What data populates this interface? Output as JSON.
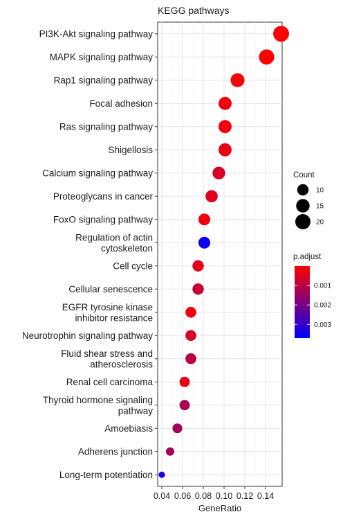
{
  "chart_data": {
    "type": "scatter",
    "title": "KEGG pathways",
    "xlabel": "GeneRatio",
    "ylabel": "",
    "xlim": [
      0.036,
      0.156
    ],
    "xticks": [
      0.04,
      0.06,
      0.08,
      0.1,
      0.12,
      0.14
    ],
    "xtick_labels": [
      "0.04",
      "0.06",
      "0.08",
      "0.10",
      "0.12",
      "0.14"
    ],
    "grid": true,
    "legend_placement": "right",
    "size_legend": {
      "title": "Count",
      "values": [
        10,
        15,
        20
      ],
      "labels": [
        "10",
        "15",
        "20"
      ]
    },
    "color_legend": {
      "title": "p.adjust",
      "low_color": "#FF0000",
      "high_color": "#0000FF",
      "min": 0.0,
      "max": 0.0037,
      "ticks": [
        0.001,
        0.002,
        0.003
      ],
      "tick_labels": [
        "0.001",
        "0.002",
        "0.003"
      ]
    },
    "points": [
      {
        "label": [
          "PI3K-Akt signaling pathway"
        ],
        "x": 0.155,
        "count": 22,
        "p_adjust": 2e-05
      },
      {
        "label": [
          "MAPK signaling pathway"
        ],
        "x": 0.141,
        "count": 20,
        "p_adjust": 5e-05
      },
      {
        "label": [
          "Rap1 signaling pathway"
        ],
        "x": 0.113,
        "count": 16,
        "p_adjust": 0.0001
      },
      {
        "label": [
          "Focal adhesion"
        ],
        "x": 0.101,
        "count": 14,
        "p_adjust": 0.0002
      },
      {
        "label": [
          "Ras signaling pathway"
        ],
        "x": 0.101,
        "count": 14,
        "p_adjust": 0.0002
      },
      {
        "label": [
          "Shigellosis"
        ],
        "x": 0.101,
        "count": 14,
        "p_adjust": 0.0003
      },
      {
        "label": [
          "Calcium signaling pathway"
        ],
        "x": 0.095,
        "count": 13,
        "p_adjust": 0.0006
      },
      {
        "label": [
          "Proteoglycans in cancer"
        ],
        "x": 0.088,
        "count": 12,
        "p_adjust": 0.0004
      },
      {
        "label": [
          "FoxO signaling pathway"
        ],
        "x": 0.081,
        "count": 11,
        "p_adjust": 0.0002
      },
      {
        "label": [
          "Regulation of actin",
          "cytoskeleton"
        ],
        "x": 0.081,
        "count": 11,
        "p_adjust": 0.0035
      },
      {
        "label": [
          "Cell cycle"
        ],
        "x": 0.075,
        "count": 10,
        "p_adjust": 0.0004
      },
      {
        "label": [
          "Cellular senescence"
        ],
        "x": 0.075,
        "count": 10,
        "p_adjust": 0.0008
      },
      {
        "label": [
          "EGFR tyrosine kinase",
          "inhibitor resistance"
        ],
        "x": 0.068,
        "count": 9,
        "p_adjust": 0.0002
      },
      {
        "label": [
          "Neurotrophin signaling pathway"
        ],
        "x": 0.068,
        "count": 9,
        "p_adjust": 0.0006
      },
      {
        "label": [
          "Fluid shear stress and",
          "atherosclerosis"
        ],
        "x": 0.068,
        "count": 9,
        "p_adjust": 0.001
      },
      {
        "label": [
          "Renal cell carcinoma"
        ],
        "x": 0.062,
        "count": 8,
        "p_adjust": 0.0003
      },
      {
        "label": [
          "Thyroid hormone signaling",
          "pathway"
        ],
        "x": 0.062,
        "count": 8,
        "p_adjust": 0.0012
      },
      {
        "label": [
          "Amoebiasis"
        ],
        "x": 0.055,
        "count": 7,
        "p_adjust": 0.0013
      },
      {
        "label": [
          "Adherens junction"
        ],
        "x": 0.048,
        "count": 5,
        "p_adjust": 0.0014
      },
      {
        "label": [
          "Long-term potentiation"
        ],
        "x": 0.04,
        "count": 3,
        "p_adjust": 0.0033
      }
    ]
  }
}
